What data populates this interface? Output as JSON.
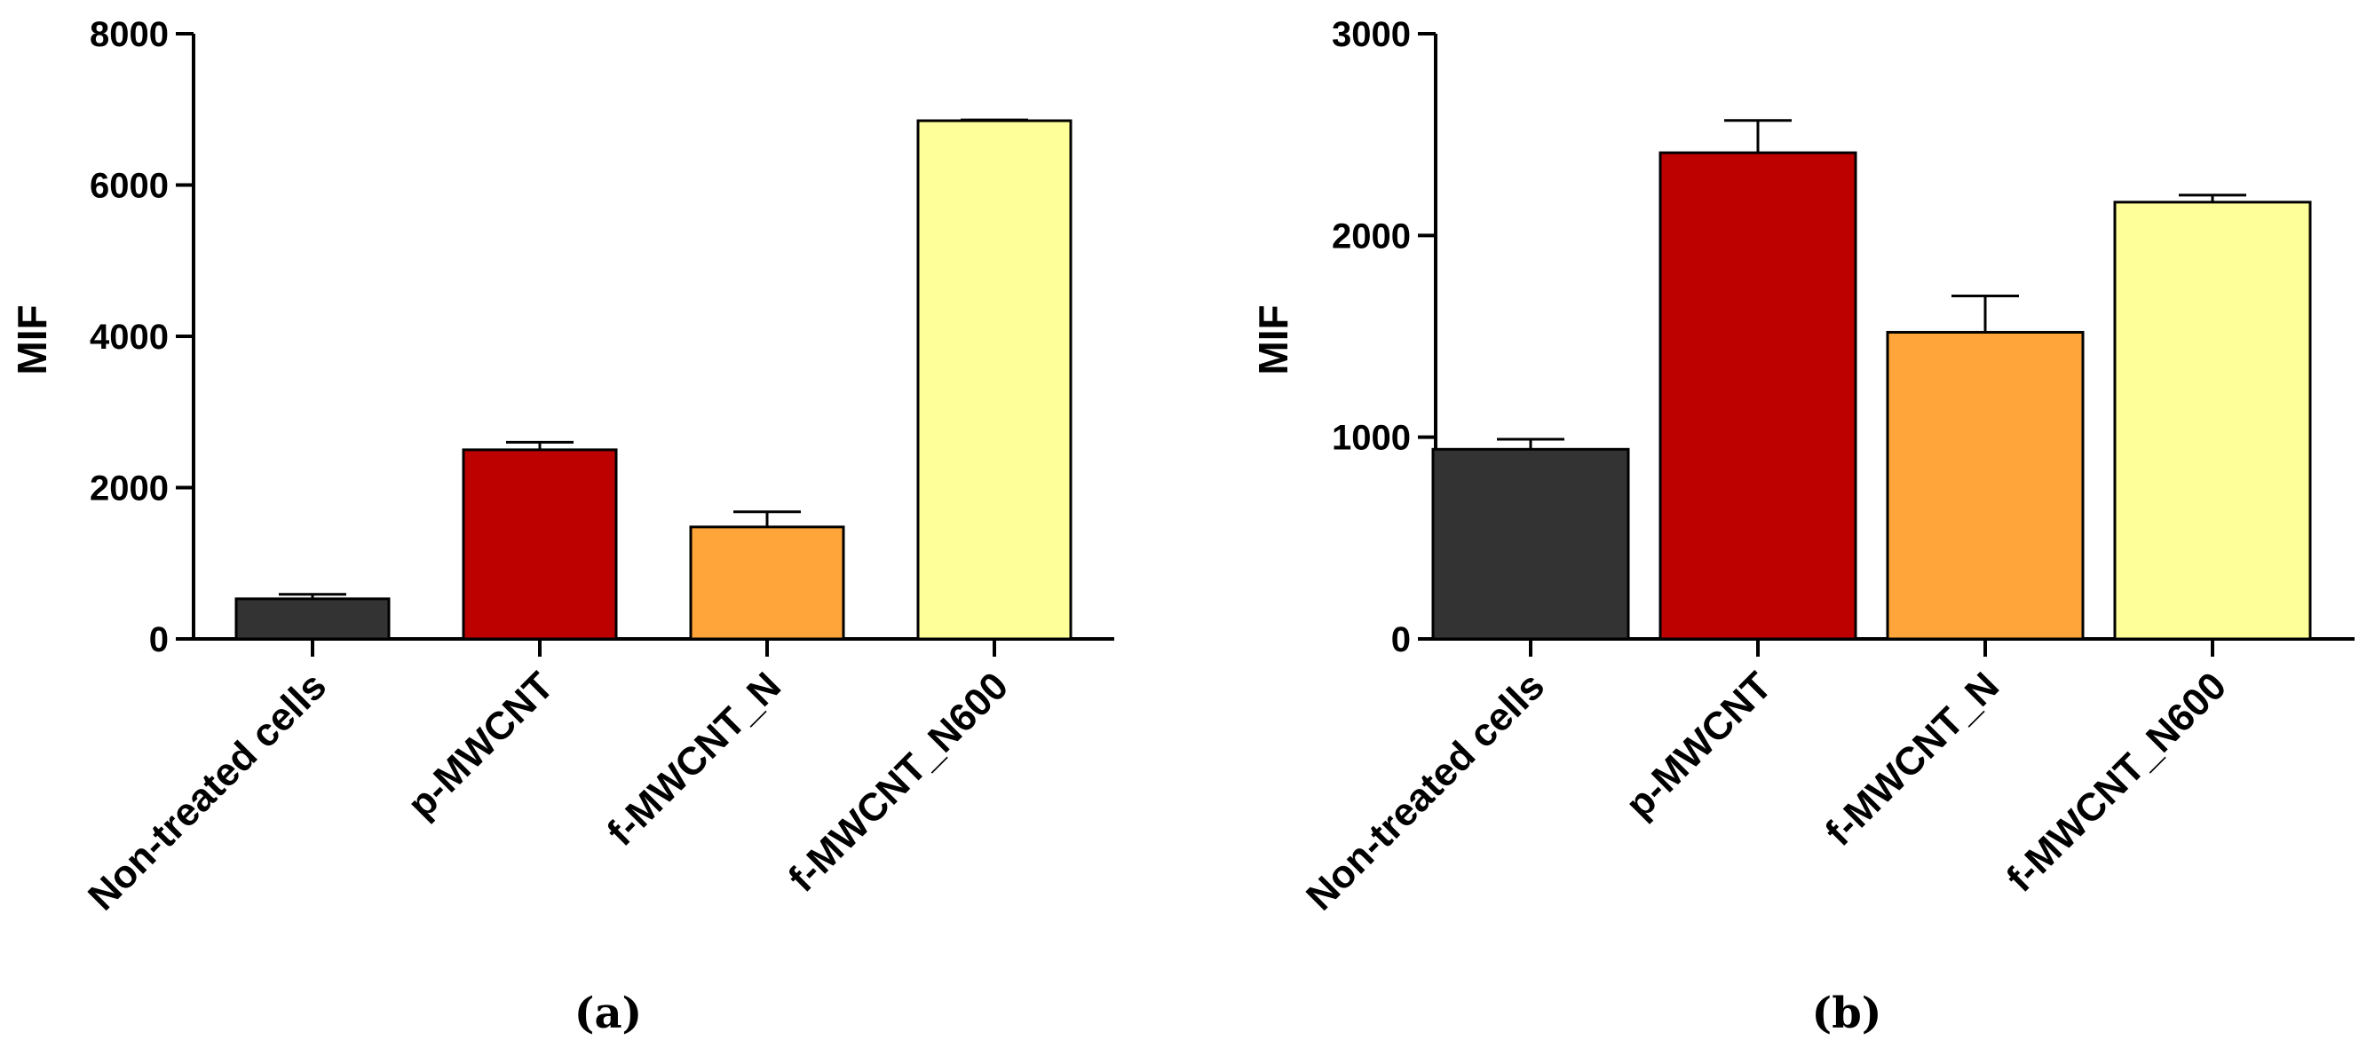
{
  "chart_data": [
    {
      "type": "bar",
      "panel_label": "(a)",
      "ylabel": "MIF",
      "ylim": [
        0,
        8000
      ],
      "yticks": [
        0,
        2000,
        4000,
        6000,
        8000
      ],
      "categories": [
        "Non-treated cells",
        "p-MWCNT",
        "f-MWCNT_N",
        "f-MWCNT_N600"
      ],
      "values": [
        530,
        2500,
        1480,
        6850
      ],
      "errors": [
        60,
        100,
        200,
        10
      ],
      "colors": [
        "#333333",
        "#bd0000",
        "#ffa53a",
        "#ffff99"
      ]
    },
    {
      "type": "bar",
      "panel_label": "(b)",
      "ylabel": "MIF",
      "ylim": [
        0,
        3000
      ],
      "yticks": [
        0,
        1000,
        2000,
        3000
      ],
      "categories": [
        "Non-treated cells",
        "p-MWCNT",
        "f-MWCNT_N",
        "f-MWCNT_N600"
      ],
      "values": [
        940,
        2410,
        1520,
        2165
      ],
      "errors": [
        50,
        160,
        180,
        35
      ],
      "colors": [
        "#333333",
        "#bd0000",
        "#ffa53a",
        "#ffff99"
      ]
    }
  ]
}
